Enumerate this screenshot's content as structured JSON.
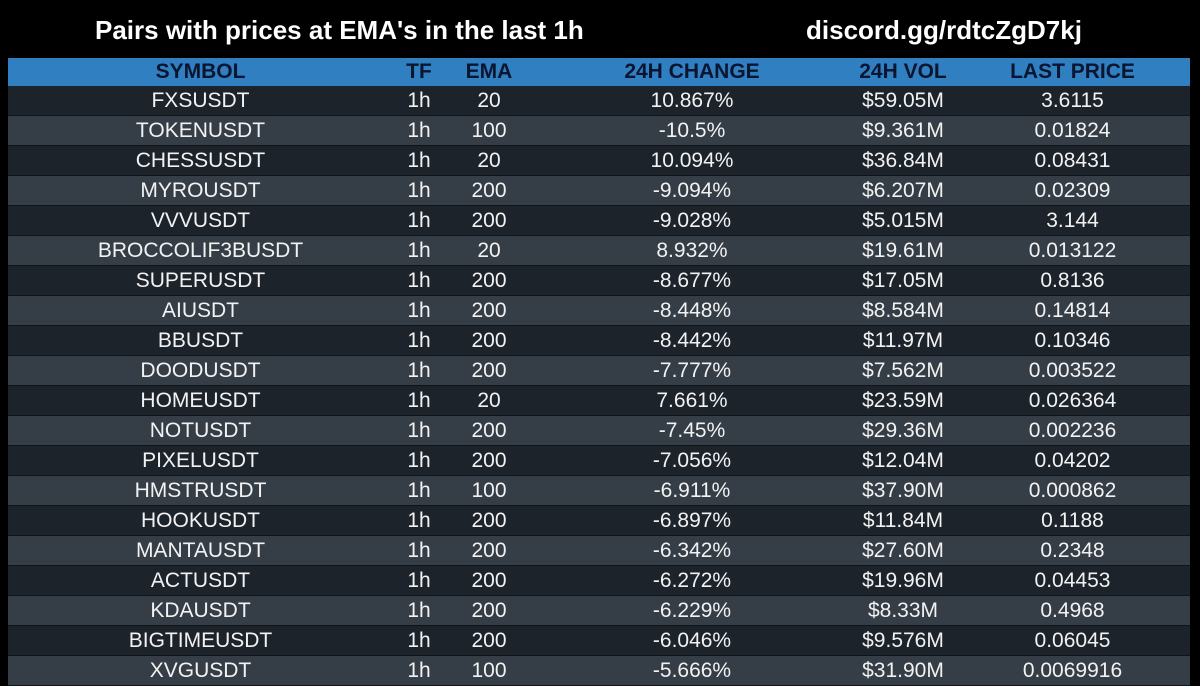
{
  "header": {
    "title": "Pairs with prices at EMA's in the last 1h",
    "link": "discord.gg/rdtcZgD7kj"
  },
  "colors": {
    "background": "#000000",
    "header_row": "#2f7fc1",
    "header_text": "#0b1530",
    "row_dark": "#1c232b",
    "row_light": "#353d46",
    "text": "#f2f2f2"
  },
  "table": {
    "columns": [
      "SYMBOL",
      "TF",
      "EMA",
      "24H CHANGE",
      "24H VOL",
      "LAST PRICE"
    ],
    "rows": [
      [
        "FXSUSDT",
        "1h",
        "20",
        "10.867%",
        "$59.05M",
        "3.6115"
      ],
      [
        "TOKENUSDT",
        "1h",
        "100",
        "-10.5%",
        "$9.361M",
        "0.01824"
      ],
      [
        "CHESSUSDT",
        "1h",
        "20",
        "10.094%",
        "$36.84M",
        "0.08431"
      ],
      [
        "MYROUSDT",
        "1h",
        "200",
        "-9.094%",
        "$6.207M",
        "0.02309"
      ],
      [
        "VVVUSDT",
        "1h",
        "200",
        "-9.028%",
        "$5.015M",
        "3.144"
      ],
      [
        "BROCCOLIF3BUSDT",
        "1h",
        "20",
        "8.932%",
        "$19.61M",
        "0.013122"
      ],
      [
        "SUPERUSDT",
        "1h",
        "200",
        "-8.677%",
        "$17.05M",
        "0.8136"
      ],
      [
        "AIUSDT",
        "1h",
        "200",
        "-8.448%",
        "$8.584M",
        "0.14814"
      ],
      [
        "BBUSDT",
        "1h",
        "200",
        "-8.442%",
        "$11.97M",
        "0.10346"
      ],
      [
        "DOODUSDT",
        "1h",
        "200",
        "-7.777%",
        "$7.562M",
        "0.003522"
      ],
      [
        "HOMEUSDT",
        "1h",
        "20",
        "7.661%",
        "$23.59M",
        "0.026364"
      ],
      [
        "NOTUSDT",
        "1h",
        "200",
        "-7.45%",
        "$29.36M",
        "0.002236"
      ],
      [
        "PIXELUSDT",
        "1h",
        "200",
        "-7.056%",
        "$12.04M",
        "0.04202"
      ],
      [
        "HMSTRUSDT",
        "1h",
        "100",
        "-6.911%",
        "$37.90M",
        "0.000862"
      ],
      [
        "HOOKUSDT",
        "1h",
        "200",
        "-6.897%",
        "$11.84M",
        "0.1188"
      ],
      [
        "MANTAUSDT",
        "1h",
        "200",
        "-6.342%",
        "$27.60M",
        "0.2348"
      ],
      [
        "ACTUSDT",
        "1h",
        "200",
        "-6.272%",
        "$19.96M",
        "0.04453"
      ],
      [
        "KDAUSDT",
        "1h",
        "200",
        "-6.229%",
        "$8.33M",
        "0.4968"
      ],
      [
        "BIGTIMEUSDT",
        "1h",
        "200",
        "-6.046%",
        "$9.576M",
        "0.06045"
      ],
      [
        "XVGUSDT",
        "1h",
        "100",
        "-5.666%",
        "$31.90M",
        "0.0069916"
      ]
    ]
  }
}
